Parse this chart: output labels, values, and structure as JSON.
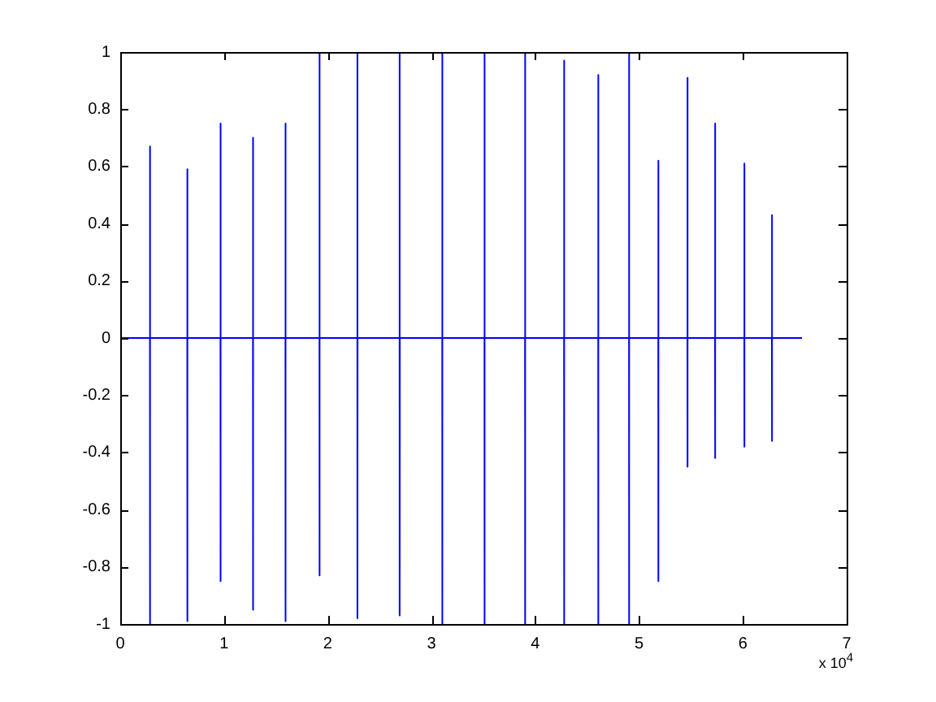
{
  "chart_data": {
    "type": "line",
    "xlim": [
      0,
      7
    ],
    "xticks": [
      0,
      1,
      2,
      3,
      4,
      5,
      6,
      7
    ],
    "ylim": [
      -1,
      1
    ],
    "yticks": [
      -1,
      -0.8,
      -0.6,
      -0.4,
      -0.2,
      0,
      0.2,
      0.4,
      0.6,
      0.8,
      1
    ],
    "annotations": [
      "x 10$^{4}$"
    ],
    "series": [
      {
        "color": "#0000ff",
        "x": [
          0,
          0.286,
          0.286,
          0.287,
          0.288,
          0.646,
          0.646,
          0.647,
          0.648,
          0.966,
          0.966,
          0.967,
          0.968,
          1.279,
          1.279,
          1.28,
          1.281,
          1.592,
          1.592,
          1.593,
          1.594,
          1.92,
          1.92,
          1.921,
          1.922,
          2.285,
          2.285,
          2.286,
          2.287,
          2.692,
          2.692,
          2.693,
          2.694,
          3.103,
          3.103,
          3.104,
          3.105,
          3.51,
          3.51,
          3.511,
          3.512,
          3.901,
          3.901,
          3.902,
          3.903,
          4.277,
          4.277,
          4.278,
          4.279,
          4.606,
          4.606,
          4.607,
          4.608,
          4.903,
          4.903,
          4.904,
          4.905,
          5.185,
          5.185,
          5.186,
          5.187,
          5.466,
          5.466,
          5.467,
          5.468,
          5.732,
          5.732,
          5.733,
          5.734,
          6.014,
          6.014,
          6.015,
          6.016,
          6.28,
          6.28,
          6.281,
          6.282,
          6.57
        ],
        "values": [
          0,
          0,
          0.67,
          -1,
          0,
          0,
          0.59,
          -0.99,
          0,
          0,
          0.75,
          -0.85,
          0,
          0,
          0.7,
          -0.95,
          0,
          0,
          0.75,
          -0.99,
          0,
          0,
          1,
          -0.83,
          0,
          0,
          1,
          -0.98,
          0,
          0,
          1,
          -0.97,
          0,
          0,
          1,
          -1,
          0,
          0,
          1,
          -1,
          0,
          0,
          1,
          -1,
          0,
          0,
          0.97,
          -1,
          0,
          0,
          0.92,
          -1,
          0,
          0,
          1,
          -1,
          0,
          0,
          0.62,
          -0.85,
          0,
          0,
          0.91,
          -0.45,
          0,
          0,
          0.75,
          -0.42,
          0,
          0,
          0.61,
          -0.38,
          0,
          0,
          0.43,
          -0.36,
          0,
          0
        ]
      }
    ]
  }
}
